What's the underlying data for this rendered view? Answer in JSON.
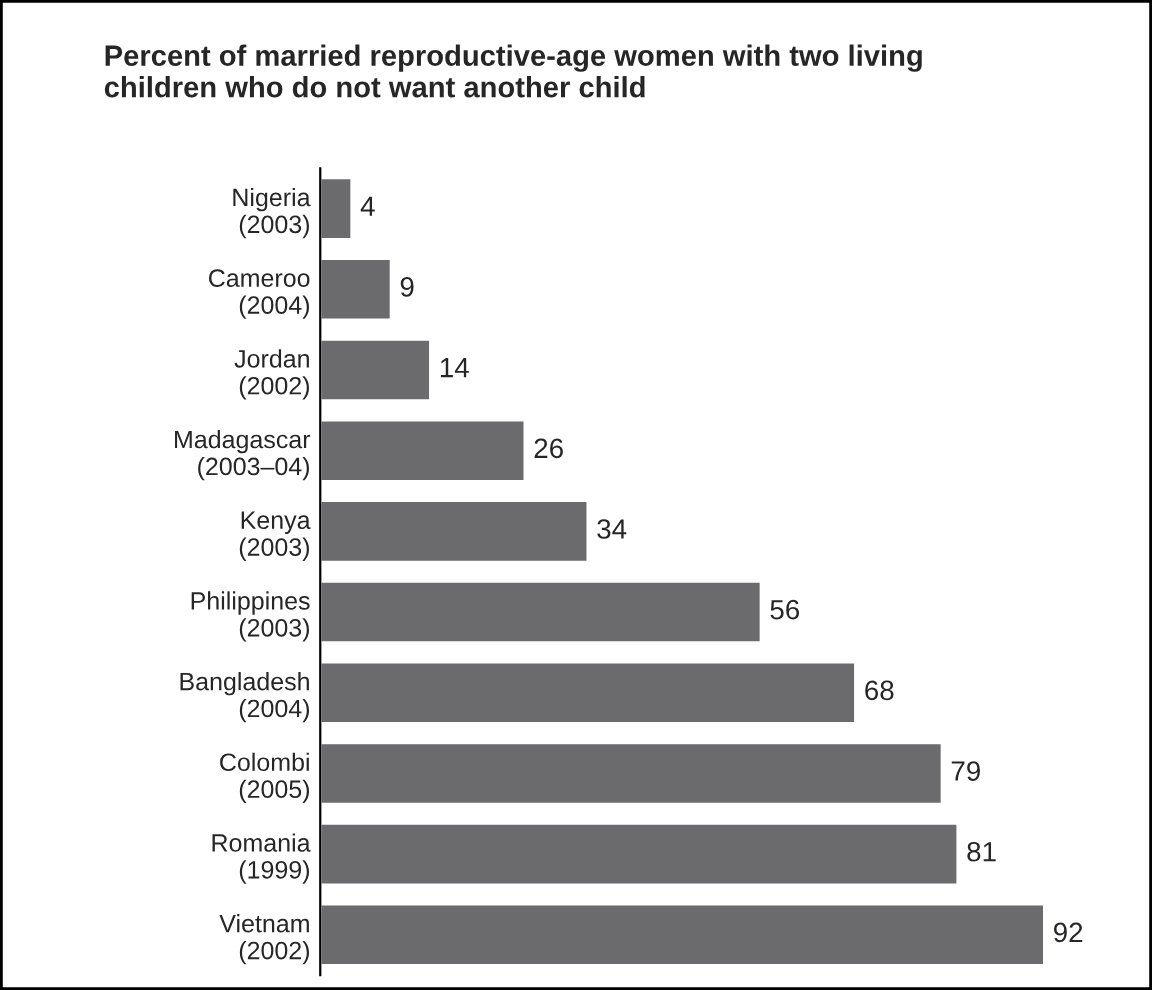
{
  "chart_data": {
    "type": "bar",
    "orientation": "horizontal",
    "title": "Percent of married reproductive-age women with two living\nchildren who do not want another child",
    "categories": [
      "Nigeria\n(2003)",
      "Cameroo\n(2004)",
      "Jordan\n(2002)",
      "Madagascar\n(2003–04)",
      "Kenya\n(2003)",
      "Philippines\n(2003)",
      "Bangladesh\n(2004)",
      "Colombi\n(2005)",
      "Romania\n(1999)",
      "Vietnam\n(2002)"
    ],
    "values": [
      4,
      9,
      14,
      26,
      34,
      56,
      68,
      79,
      81,
      92
    ],
    "color": "#6b6b6e",
    "data_labels": true,
    "grid": false,
    "legend": false
  }
}
